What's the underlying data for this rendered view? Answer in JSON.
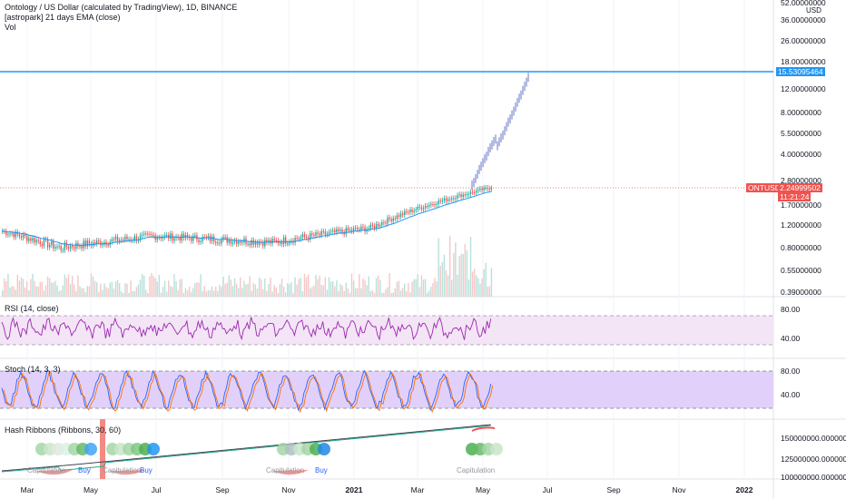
{
  "header": {
    "title": "Ontology / US Dollar (calculated by TradingView), 1D, BINANCE",
    "indicator": "[astropark] 21 days EMA (close)",
    "volume": "Vol"
  },
  "price_axis": {
    "ticks": [
      "52.00000000",
      "36.00000000",
      "26.00000000",
      "18.00000000",
      "12.00000000",
      "8.00000000",
      "5.50000000",
      "4.00000000",
      "2.80000000",
      "1.70000000",
      "1.20000000",
      "0.80000000",
      "0.55000000",
      "0.39000000"
    ],
    "unit": "USD",
    "resistance_label": "15.53095464",
    "symbol_tag": "ONTUSD",
    "last_price": "2.24999502",
    "countdown": "11:21:24"
  },
  "rsi": {
    "title": "RSI (14, close)",
    "ticks": [
      "80.00",
      "40.00"
    ]
  },
  "stoch": {
    "title": "Stoch (14, 3, 3)",
    "ticks": [
      "80.00",
      "40.00"
    ]
  },
  "hash": {
    "title": "Hash Ribbons (Ribbons, 30, 60)",
    "ticks": [
      "150000000.00000000",
      "125000000.00000000",
      "100000000.00000000"
    ],
    "captions": [
      {
        "text": "Capitulation",
        "color": "#9598a1"
      },
      {
        "text": "Buy",
        "color": "#2962ff"
      },
      {
        "text": "Capitulation",
        "color": "#9598a1"
      },
      {
        "text": "Buy",
        "color": "#2962ff"
      },
      {
        "text": "Capitulation",
        "color": "#9598a1"
      },
      {
        "text": "Buy",
        "color": "#2962ff"
      },
      {
        "text": "Capitulation",
        "color": "#9598a1"
      }
    ]
  },
  "time_axis": [
    "Mar",
    "May",
    "Jul",
    "Sep",
    "Nov",
    "2021",
    "Mar",
    "May",
    "Jul",
    "Sep",
    "Nov",
    "2022"
  ],
  "colors": {
    "up": "#26a69a",
    "down": "#ef5350",
    "projection": "#5c6bc0",
    "ema": "#2196f3",
    "resistance": "#2196f3",
    "last": "#ef5350",
    "rsi_fill": "#f3e5f5",
    "rsi_line": "#9c27b0",
    "stoch_fill": "#e1d1fa",
    "stoch_k": "#2962ff",
    "stoch_d": "#ff6d00"
  }
}
